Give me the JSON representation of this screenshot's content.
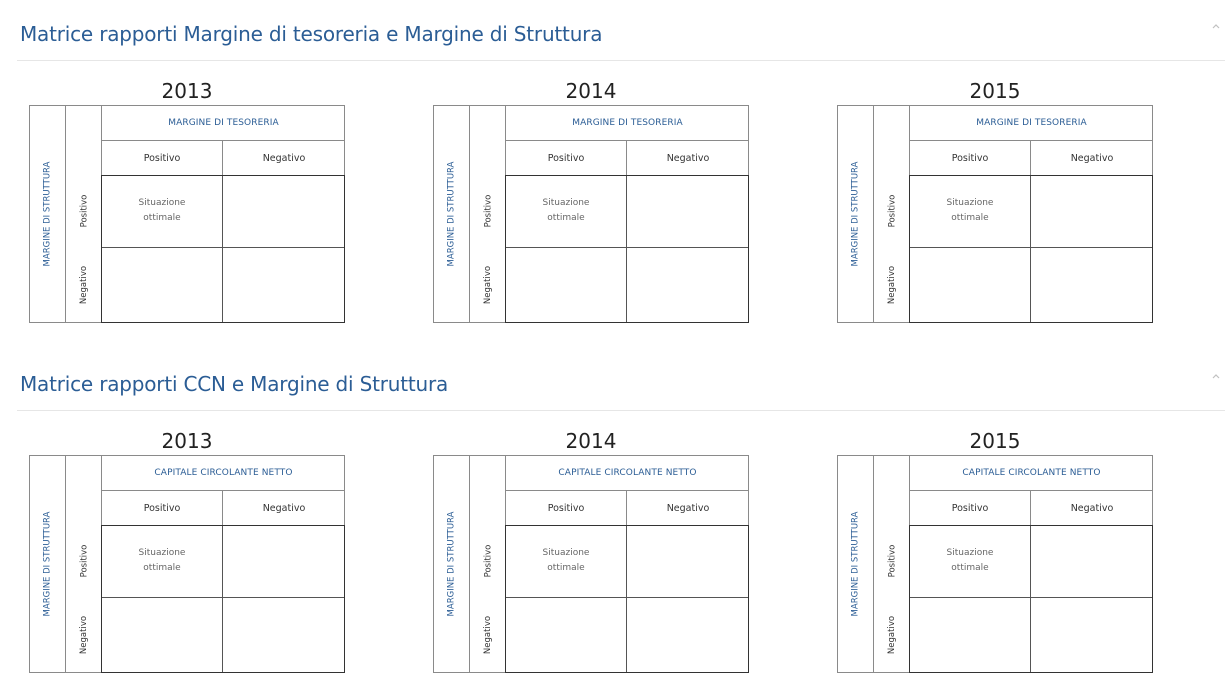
{
  "sections": [
    {
      "title": "Matrice rapporti Margine di tesoreria e Margine di Struttura",
      "collapse_icon": "chevron-up-icon",
      "matrices": [
        {
          "year": "2013",
          "col_header": "MARGINE DI TESORERIA",
          "row_header": "MARGINE DI STRUTTURA",
          "col_positive": "Positivo",
          "col_negative": "Negativo",
          "row_positive": "Positivo",
          "row_negative": "Negativo",
          "cell_optimal_line1": "Situazione",
          "cell_optimal_line2": "ottimale"
        },
        {
          "year": "2014",
          "col_header": "MARGINE DI TESORERIA",
          "row_header": "MARGINE DI STRUTTURA",
          "col_positive": "Positivo",
          "col_negative": "Negativo",
          "row_positive": "Positivo",
          "row_negative": "Negativo",
          "cell_optimal_line1": "Situazione",
          "cell_optimal_line2": "ottimale"
        },
        {
          "year": "2015",
          "col_header": "MARGINE DI TESORERIA",
          "row_header": "MARGINE DI STRUTTURA",
          "col_positive": "Positivo",
          "col_negative": "Negativo",
          "row_positive": "Positivo",
          "row_negative": "Negativo",
          "cell_optimal_line1": "Situazione",
          "cell_optimal_line2": "ottimale"
        }
      ]
    },
    {
      "title": "Matrice rapporti CCN e Margine di Struttura",
      "collapse_icon": "chevron-up-icon",
      "matrices": [
        {
          "year": "2013",
          "col_header": "CAPITALE CIRCOLANTE NETTO",
          "row_header": "MARGINE DI STRUTTURA",
          "col_positive": "Positivo",
          "col_negative": "Negativo",
          "row_positive": "Positivo",
          "row_negative": "Negativo",
          "cell_optimal_line1": "Situazione",
          "cell_optimal_line2": "ottimale"
        },
        {
          "year": "2014",
          "col_header": "CAPITALE CIRCOLANTE NETTO",
          "row_header": "MARGINE DI STRUTTURA",
          "col_positive": "Positivo",
          "col_negative": "Negativo",
          "row_positive": "Positivo",
          "row_negative": "Negativo",
          "cell_optimal_line1": "Situazione",
          "cell_optimal_line2": "ottimale"
        },
        {
          "year": "2015",
          "col_header": "CAPITALE CIRCOLANTE NETTO",
          "row_header": "MARGINE DI STRUTTURA",
          "col_positive": "Positivo",
          "col_negative": "Negativo",
          "row_positive": "Positivo",
          "row_negative": "Negativo",
          "cell_optimal_line1": "Situazione",
          "cell_optimal_line2": "ottimale"
        }
      ]
    }
  ],
  "colors": {
    "title": "#2b5d95",
    "header_accent": "#2b5d95",
    "text": "#333333",
    "border": "#8a8a8a"
  }
}
